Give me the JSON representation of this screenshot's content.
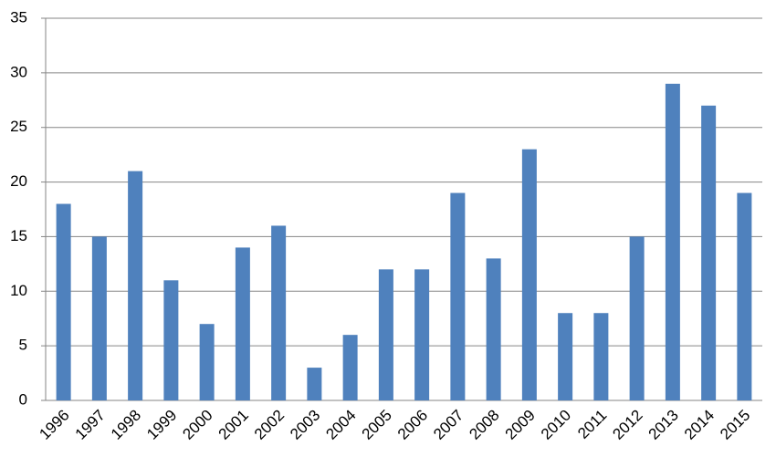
{
  "chart_data": {
    "type": "bar",
    "categories": [
      "1996",
      "1997",
      "1998",
      "1999",
      "2000",
      "2001",
      "2002",
      "2003",
      "2004",
      "2005",
      "2006",
      "2007",
      "2008",
      "2009",
      "2010",
      "2011",
      "2012",
      "2013",
      "2014",
      "2015"
    ],
    "values": [
      18,
      15,
      21,
      11,
      7,
      14,
      16,
      3,
      6,
      12,
      12,
      19,
      13,
      23,
      8,
      8,
      15,
      29,
      27,
      19
    ],
    "color": "#4f81bd",
    "ylim": [
      0,
      35
    ],
    "yticks": [
      0,
      5,
      10,
      15,
      20,
      25,
      30,
      35
    ],
    "grid": true
  }
}
